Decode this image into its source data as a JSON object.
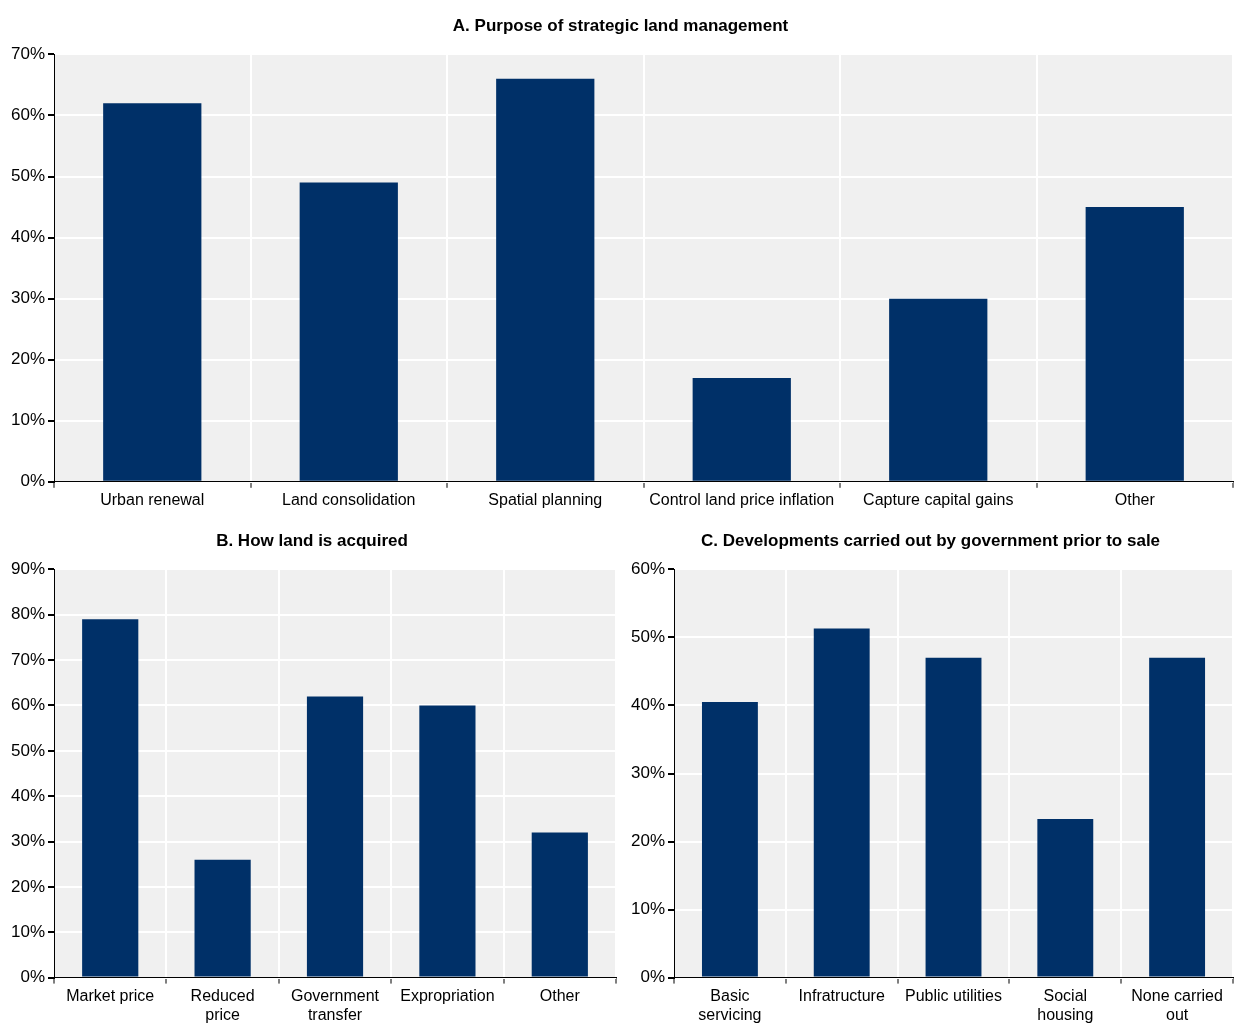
{
  "chart_data": [
    {
      "type": "bar",
      "title": "A. Purpose of strategic land management",
      "categories": [
        "Urban renewal",
        "Land consolidation",
        "Spatial planning",
        "Control land price inflation",
        "Capture capital gains",
        "Other"
      ],
      "values": [
        62,
        49,
        66,
        17,
        30,
        45
      ],
      "color": "#003068",
      "ylim": [
        0,
        70
      ],
      "yticks": [
        {
          "value": 0,
          "label": "0%"
        },
        {
          "value": 10,
          "label": "10%"
        },
        {
          "value": 20,
          "label": "20%"
        },
        {
          "value": 30,
          "label": "30%"
        },
        {
          "value": 40,
          "label": "40%"
        },
        {
          "value": 50,
          "label": "50%"
        },
        {
          "value": 60,
          "label": "60%"
        },
        {
          "value": 70,
          "label": "70%"
        }
      ],
      "grid": true,
      "legend": false
    },
    {
      "type": "bar",
      "title": "B. How land is acquired",
      "categories": [
        "Market price",
        "Reduced price",
        "Government transfer",
        "Expropriation",
        "Other"
      ],
      "values": [
        79,
        26,
        62,
        60,
        32
      ],
      "color": "#003068",
      "ylim": [
        0,
        90
      ],
      "yticks": [
        {
          "value": 0,
          "label": "0%"
        },
        {
          "value": 10,
          "label": "10%"
        },
        {
          "value": 20,
          "label": "20%"
        },
        {
          "value": 30,
          "label": "30%"
        },
        {
          "value": 40,
          "label": "40%"
        },
        {
          "value": 50,
          "label": "50%"
        },
        {
          "value": 60,
          "label": "60%"
        },
        {
          "value": 70,
          "label": "70%"
        },
        {
          "value": 80,
          "label": "80%"
        },
        {
          "value": 90,
          "label": "90%"
        }
      ],
      "grid": true,
      "legend": false
    },
    {
      "type": "bar",
      "title": "C. Developments carried out by government prior to sale",
      "categories": [
        "Basic servicing",
        "Infratructure",
        "Public utilities",
        "Social housing",
        "None carried out"
      ],
      "values": [
        40.5,
        51.3,
        47,
        23.3,
        47
      ],
      "color": "#003068",
      "ylim": [
        0,
        60
      ],
      "yticks": [
        {
          "value": 0,
          "label": "0%"
        },
        {
          "value": 10,
          "label": "10%"
        },
        {
          "value": 20,
          "label": "20%"
        },
        {
          "value": 30,
          "label": "30%"
        },
        {
          "value": 40,
          "label": "40%"
        },
        {
          "value": 50,
          "label": "50%"
        },
        {
          "value": 60,
          "label": "60%"
        }
      ],
      "grid": true,
      "legend": false
    }
  ]
}
